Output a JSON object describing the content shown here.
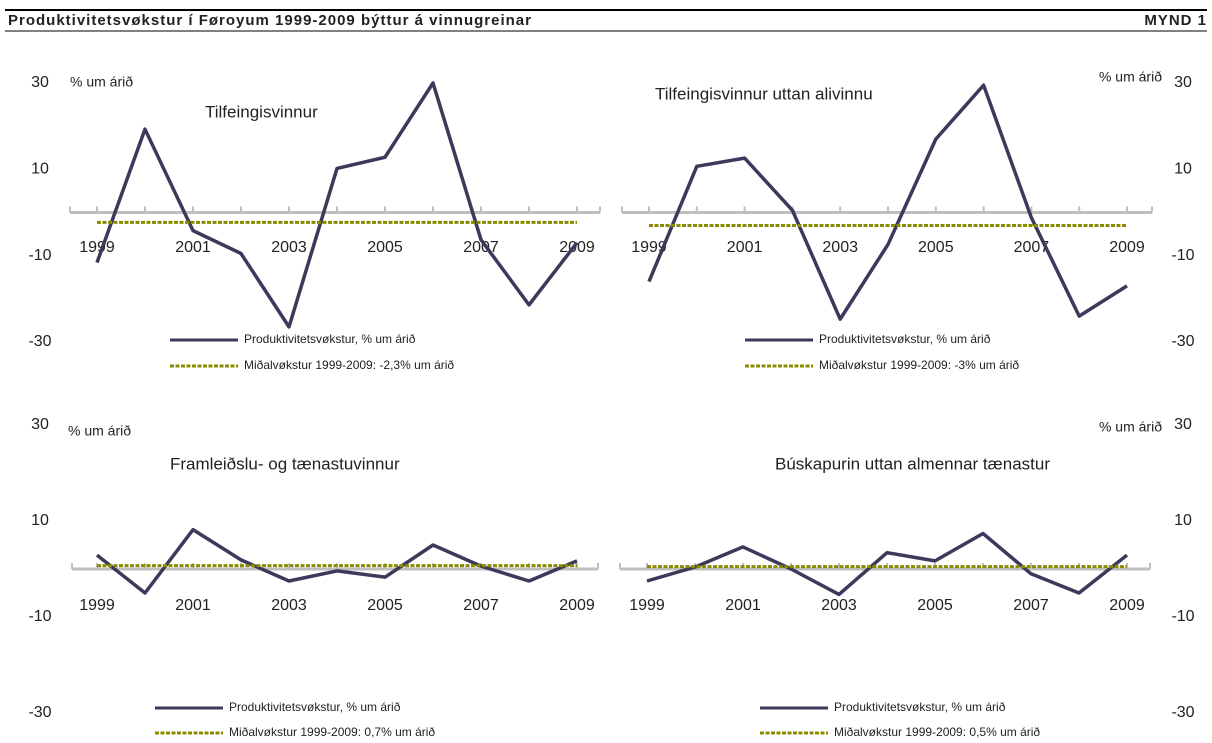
{
  "header": {
    "title": "Produktivitetsvøkstur í Føroyum 1999-2009 býttur á vinnugreinar",
    "figure": "MYND 1"
  },
  "chart_data": [
    {
      "type": "line",
      "title": "Tilfeingisvinnur",
      "ylabel": "% um árið",
      "axis_side": "left",
      "categories": [
        "1999",
        null,
        "2001",
        null,
        "2003",
        null,
        "2005",
        null,
        "2007",
        null,
        "2009"
      ],
      "ylim": [
        -30,
        30
      ],
      "yticks": [
        -30,
        -10,
        10,
        30
      ],
      "series": [
        {
          "name": "Produktivitetsvøkstur, % um árið",
          "color": "#3c3a5a",
          "values": [
            -11.6,
            19.3,
            -4.2,
            -9.5,
            -26.5,
            10.2,
            12.8,
            30,
            -6.3,
            -21.4,
            -7
          ]
        },
        {
          "name": "Miðalvøkstur 1999-2009: -2,3% um árið",
          "color": "#8b8b00",
          "values": [
            -2.3,
            -2.3,
            -2.3,
            -2.3,
            -2.3,
            -2.3,
            -2.3,
            -2.3,
            -2.3,
            -2.3,
            -2.3
          ]
        }
      ]
    },
    {
      "type": "line",
      "title": "Tilfeingisvinnur uttan alivinnu",
      "ylabel": "% um árið",
      "axis_side": "right",
      "categories": [
        "1999",
        null,
        "2001",
        null,
        "2003",
        null,
        "2005",
        null,
        "2007",
        null,
        "2009"
      ],
      "ylim": [
        -30,
        30
      ],
      "yticks": [
        -30,
        -10,
        10,
        30
      ],
      "series": [
        {
          "name": "Produktivitetsvøkstur, % um árið",
          "color": "#3c3a5a",
          "values": [
            -16,
            10.7,
            12.6,
            0.5,
            -24.7,
            -7.4,
            17,
            29.5,
            -1.2,
            -24,
            -17
          ]
        },
        {
          "name": "Miðalvøkstur 1999-2009: -3% um árið",
          "color": "#8b8b00",
          "values": [
            -3,
            -3,
            -3,
            -3,
            -3,
            -3,
            -3,
            -3,
            -3,
            -3,
            -3
          ]
        }
      ]
    },
    {
      "type": "line",
      "title": "Framleiðslu- og tænastuvinnur",
      "ylabel": "% um árið",
      "axis_side": "left",
      "categories": [
        "1999",
        null,
        "2001",
        null,
        "2003",
        null,
        "2005",
        null,
        "2007",
        null,
        "2009"
      ],
      "ylim": [
        -30,
        30
      ],
      "yticks": [
        -30,
        -10,
        10,
        30
      ],
      "series": [
        {
          "name": "Produktivitetsvøkstur, % um árið",
          "color": "#3c3a5a",
          "values": [
            2.9,
            -5,
            8.2,
            1.9,
            -2.5,
            -0.4,
            -1.7,
            5,
            0.6,
            -2.5,
            1.7
          ]
        },
        {
          "name": "Miðalvøkstur 1999-2009: 0,7% um árið",
          "color": "#8b8b00",
          "values": [
            0.7,
            0.7,
            0.7,
            0.7,
            0.7,
            0.7,
            0.7,
            0.7,
            0.7,
            0.7,
            0.7
          ]
        }
      ]
    },
    {
      "type": "line",
      "title": "Búskapurin uttan almennar tænastur",
      "ylabel": "% um árið",
      "axis_side": "right",
      "categories": [
        "1999",
        null,
        "2001",
        null,
        "2003",
        null,
        "2005",
        null,
        "2007",
        null,
        "2009"
      ],
      "ylim": [
        -30,
        30
      ],
      "yticks": [
        -30,
        -10,
        10,
        30
      ],
      "series": [
        {
          "name": "Produktivitetsvøkstur, % um árið",
          "color": "#3c3a5a",
          "values": [
            -2.5,
            0.4,
            4.6,
            0,
            -5.3,
            3.4,
            1.7,
            7.4,
            -1,
            -5,
            2.9
          ]
        },
        {
          "name": "Miðalvøkstur 1999-2009: 0,5% um árið",
          "color": "#8b8b00",
          "values": [
            0.5,
            0.5,
            0.5,
            0.5,
            0.5,
            0.5,
            0.5,
            0.5,
            0.5,
            0.5,
            0.5
          ]
        }
      ]
    }
  ]
}
